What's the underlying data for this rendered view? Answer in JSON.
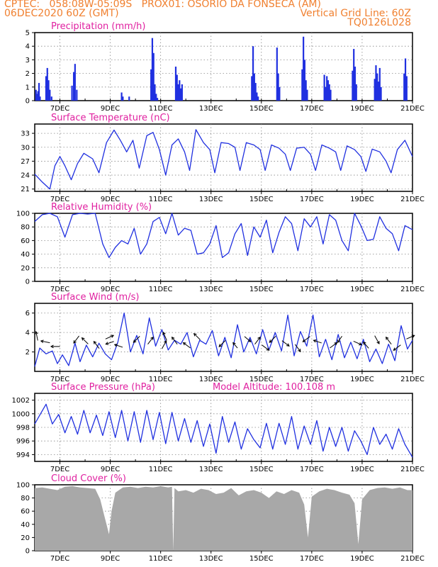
{
  "header": {
    "line1": "CPTEC:   058:08W-05:09S   PROX01: OSORIO DA FONSECA (AM)",
    "line2": "06DEC2020 60Z (GMT)",
    "grid_note": "Vertical Grid Line: 60Z",
    "code": "TQ0126L028"
  },
  "colors": {
    "header": "#f08030",
    "title": "#e020a0",
    "series": "#2030e0",
    "cloud": "#a8a8a8",
    "grid": "#888888"
  },
  "chart_data": [
    {
      "type": "bar",
      "title": "Precipitation (mm/h)",
      "x_ticks": [
        "7DEC",
        "9DEC",
        "11DEC",
        "13DEC",
        "15DEC",
        "17DEC",
        "19DEC",
        "21DEC"
      ],
      "ylim": [
        0,
        5
      ],
      "y_ticks": [
        0,
        1,
        2,
        3,
        4,
        5
      ],
      "grid": true,
      "x": [
        6.05,
        6.09,
        6.13,
        6.17,
        6.21,
        6.45,
        6.5,
        6.55,
        6.6,
        6.67,
        7.48,
        7.55,
        7.6,
        7.67,
        9.45,
        9.5,
        9.75,
        10.62,
        10.67,
        10.72,
        10.77,
        10.82,
        10.87,
        11.6,
        11.65,
        11.7,
        11.75,
        11.8,
        11.85,
        14.62,
        14.67,
        14.72,
        14.77,
        14.82,
        14.87,
        15.62,
        15.67,
        15.72,
        16.62,
        16.67,
        16.72,
        16.77,
        16.82,
        17.5,
        17.55,
        17.6,
        17.65,
        17.7,
        17.75,
        18.62,
        18.67,
        18.72,
        18.77,
        19.5,
        19.55,
        19.6,
        19.65,
        19.7,
        19.75,
        20.67,
        20.72,
        20.77
      ],
      "values": [
        0.8,
        0.5,
        0.7,
        1.3,
        0.3,
        1.8,
        2.4,
        1.5,
        0.8,
        0.3,
        1.1,
        2.1,
        2.7,
        0.8,
        0.6,
        0.3,
        0.3,
        2.3,
        4.6,
        3.5,
        1.2,
        0.5,
        0.2,
        2.5,
        1.9,
        1.2,
        1.5,
        0.9,
        1.2,
        1.8,
        4.0,
        2.0,
        1.3,
        0.6,
        0.3,
        3.9,
        2.0,
        1.0,
        2.3,
        4.7,
        3.0,
        1.5,
        0.8,
        1.9,
        1.0,
        1.8,
        1.5,
        1.2,
        0.8,
        2.2,
        3.8,
        2.5,
        1.2,
        1.6,
        2.6,
        2.0,
        1.4,
        2.4,
        1.0,
        2.0,
        3.1,
        1.8
      ]
    },
    {
      "type": "line",
      "title": "Surface Temperature (nC)",
      "x_ticks": [
        "7DEC",
        "9DEC",
        "11DEC",
        "13DEC",
        "15DEC",
        "17DEC",
        "19DEC",
        "21DEC"
      ],
      "ylim": [
        20.5,
        35
      ],
      "y_ticks": [
        21,
        24,
        27,
        30,
        33
      ],
      "grid": true,
      "x": [
        6.0,
        6.3,
        6.6,
        6.8,
        7.0,
        7.2,
        7.45,
        7.7,
        7.95,
        8.3,
        8.55,
        8.85,
        9.15,
        9.4,
        9.65,
        9.9,
        10.15,
        10.45,
        10.7,
        10.95,
        11.2,
        11.45,
        11.7,
        11.95,
        12.15,
        12.4,
        12.7,
        12.95,
        13.15,
        13.4,
        13.7,
        13.95,
        14.15,
        14.4,
        14.7,
        14.95,
        15.15,
        15.4,
        15.7,
        15.95,
        16.15,
        16.4,
        16.7,
        16.95,
        17.15,
        17.4,
        17.7,
        17.95,
        18.15,
        18.4,
        18.7,
        18.95,
        19.15,
        19.4,
        19.7,
        19.95,
        20.15,
        20.4,
        20.7,
        21.0
      ],
      "values": [
        24.2,
        22.5,
        21.0,
        26.0,
        28.0,
        26.0,
        23.0,
        26.5,
        28.7,
        27.5,
        24.5,
        31.0,
        33.7,
        31.5,
        29.0,
        31.5,
        25.5,
        32.5,
        33.2,
        29.5,
        24.0,
        30.5,
        31.8,
        29.0,
        25.0,
        33.8,
        31.0,
        29.5,
        24.5,
        31.0,
        30.8,
        30.0,
        25.0,
        31.0,
        30.5,
        29.5,
        25.0,
        30.5,
        29.8,
        28.5,
        25.0,
        29.8,
        30.0,
        28.5,
        25.0,
        30.5,
        29.8,
        29.0,
        25.0,
        30.3,
        29.5,
        28.0,
        24.8,
        29.6,
        29.0,
        27.0,
        24.5,
        29.5,
        31.5,
        28.0
      ]
    },
    {
      "type": "line",
      "title": "Relative Humidity (%)",
      "x_ticks": [
        "7DEC",
        "9DEC",
        "11DEC",
        "13DEC",
        "15DEC",
        "17DEC",
        "19DEC",
        "21DEC"
      ],
      "ylim": [
        0,
        100
      ],
      "y_ticks": [
        0,
        20,
        40,
        60,
        80,
        100
      ],
      "grid": true,
      "x": [
        6.0,
        6.3,
        6.6,
        6.9,
        7.2,
        7.5,
        7.8,
        8.1,
        8.4,
        8.7,
        8.95,
        9.2,
        9.45,
        9.7,
        9.95,
        10.2,
        10.45,
        10.7,
        10.95,
        11.2,
        11.45,
        11.7,
        11.95,
        12.2,
        12.45,
        12.7,
        12.95,
        13.2,
        13.45,
        13.7,
        13.95,
        14.2,
        14.45,
        14.7,
        14.95,
        15.2,
        15.45,
        15.7,
        15.95,
        16.2,
        16.45,
        16.7,
        16.95,
        17.2,
        17.45,
        17.7,
        17.95,
        18.2,
        18.45,
        18.7,
        18.95,
        19.2,
        19.45,
        19.7,
        19.95,
        20.2,
        20.45,
        20.7,
        21.0
      ],
      "values": [
        88,
        98,
        100,
        95,
        65,
        98,
        100,
        99,
        100,
        55,
        35,
        50,
        60,
        55,
        78,
        40,
        55,
        88,
        94,
        70,
        100,
        68,
        78,
        75,
        40,
        42,
        55,
        82,
        35,
        42,
        70,
        85,
        38,
        80,
        65,
        90,
        42,
        72,
        95,
        85,
        45,
        92,
        80,
        95,
        55,
        98,
        90,
        60,
        45,
        100,
        82,
        60,
        62,
        95,
        78,
        70,
        45,
        82,
        76
      ]
    },
    {
      "type": "line",
      "title": "Surface Wind (m/s)",
      "x_ticks": [
        "7DEC",
        "9DEC",
        "11DEC",
        "13DEC",
        "15DEC",
        "17DEC",
        "19DEC",
        "21DEC"
      ],
      "ylim": [
        0,
        7
      ],
      "y_ticks": [
        2,
        4,
        6
      ],
      "grid": true,
      "x": [
        6.0,
        6.2,
        6.45,
        6.7,
        6.9,
        7.1,
        7.35,
        7.6,
        7.8,
        8.05,
        8.3,
        8.55,
        8.8,
        9.05,
        9.3,
        9.55,
        9.8,
        10.05,
        10.3,
        10.55,
        10.8,
        11.05,
        11.3,
        11.55,
        11.8,
        12.05,
        12.3,
        12.55,
        12.8,
        13.05,
        13.3,
        13.55,
        13.8,
        14.05,
        14.3,
        14.55,
        14.8,
        15.05,
        15.3,
        15.55,
        15.8,
        16.05,
        16.3,
        16.55,
        16.8,
        17.05,
        17.3,
        17.55,
        17.8,
        18.05,
        18.3,
        18.55,
        18.8,
        19.05,
        19.3,
        19.55,
        19.8,
        20.05,
        20.3,
        20.55,
        20.8,
        21.0
      ],
      "values": [
        0.5,
        2.4,
        1.8,
        2.1,
        0.8,
        1.7,
        0.6,
        2.9,
        1.0,
        2.7,
        1.5,
        2.9,
        1.8,
        1.2,
        3.0,
        6.0,
        2.0,
        3.7,
        1.8,
        5.5,
        2.6,
        4.3,
        2.2,
        3.2,
        2.8,
        4.0,
        1.5,
        3.2,
        2.8,
        4.2,
        1.6,
        3.5,
        1.4,
        4.8,
        2.0,
        3.5,
        1.8,
        4.3,
        2.2,
        4.0,
        2.1,
        5.8,
        1.6,
        4.1,
        2.6,
        5.8,
        1.5,
        3.3,
        1.2,
        3.8,
        1.4,
        3.0,
        1.3,
        3.3,
        1.0,
        2.3,
        0.8,
        2.8,
        1.1,
        4.7,
        2.3,
        3.2
      ],
      "arrows": [
        {
          "t": 6.1,
          "u": -0.2,
          "v": 1
        },
        {
          "t": 6.5,
          "u": -1,
          "v": 0.2
        },
        {
          "t": 6.9,
          "u": -1,
          "v": 0
        },
        {
          "t": 7.7,
          "u": -0.6,
          "v": -0.8
        },
        {
          "t": 8.05,
          "u": -0.7,
          "v": 0.7
        },
        {
          "t": 8.5,
          "u": -0.6,
          "v": 0.8
        },
        {
          "t": 8.9,
          "u": 0.9,
          "v": 0.4
        },
        {
          "t": 9.05,
          "u": -0.9,
          "v": -0.3
        },
        {
          "t": 9.4,
          "u": -0.9,
          "v": 0.3
        },
        {
          "t": 10.1,
          "u": -0.7,
          "v": -0.7
        },
        {
          "t": 10.55,
          "u": 0.6,
          "v": 0.8
        },
        {
          "t": 11.1,
          "u": 0.5,
          "v": 0.9
        },
        {
          "t": 11.2,
          "u": -0.4,
          "v": 0.9
        },
        {
          "t": 11.6,
          "u": -0.6,
          "v": 0.8
        },
        {
          "t": 12.1,
          "u": -0.8,
          "v": 0.6
        },
        {
          "t": 12.5,
          "u": -0.7,
          "v": 0.7
        },
        {
          "t": 13.5,
          "u": -0.7,
          "v": -0.7
        },
        {
          "t": 14.0,
          "u": -0.5,
          "v": 0.6
        },
        {
          "t": 14.4,
          "u": 0.7,
          "v": -0.6
        },
        {
          "t": 14.8,
          "u": 0.6,
          "v": 0.8
        },
        {
          "t": 15.1,
          "u": 0.8,
          "v": -0.6
        },
        {
          "t": 15.5,
          "u": -0.7,
          "v": -0.7
        },
        {
          "t": 15.9,
          "u": 0.8,
          "v": -0.6
        },
        {
          "t": 16.4,
          "u": 0.6,
          "v": -0.8
        },
        {
          "t": 16.85,
          "u": -0.8,
          "v": -0.6
        },
        {
          "t": 17.3,
          "u": -0.9,
          "v": 0.3
        },
        {
          "t": 17.8,
          "u": 0.8,
          "v": 0.6
        },
        {
          "t": 18.15,
          "u": -0.5,
          "v": -0.7
        },
        {
          "t": 18.75,
          "u": 0.9,
          "v": -0.4
        },
        {
          "t": 19.2,
          "u": -0.6,
          "v": 0.7
        },
        {
          "t": 19.55,
          "u": 0.5,
          "v": -0.9
        },
        {
          "t": 20.1,
          "u": -0.6,
          "v": 0.8
        },
        {
          "t": 20.45,
          "u": -0.8,
          "v": -0.6
        },
        {
          "t": 20.85,
          "u": 0.9,
          "v": 0.4
        }
      ]
    },
    {
      "type": "line",
      "title": "Surface Pressure (hPa)",
      "annotation": "Model Altitude: 100.108 m",
      "x_ticks": [
        "7DEC",
        "9DEC",
        "11DEC",
        "13DEC",
        "15DEC",
        "17DEC",
        "19DEC",
        "21DEC"
      ],
      "ylim": [
        993,
        1003
      ],
      "y_ticks": [
        994,
        996,
        998,
        1000,
        1002
      ],
      "grid": true,
      "x": [
        6.0,
        6.2,
        6.45,
        6.7,
        6.95,
        7.2,
        7.45,
        7.7,
        7.95,
        8.2,
        8.45,
        8.7,
        8.95,
        9.2,
        9.45,
        9.7,
        9.95,
        10.2,
        10.45,
        10.7,
        10.95,
        11.2,
        11.45,
        11.7,
        11.95,
        12.2,
        12.45,
        12.7,
        12.95,
        13.2,
        13.45,
        13.7,
        13.95,
        14.2,
        14.45,
        14.7,
        14.95,
        15.2,
        15.45,
        15.7,
        15.95,
        16.2,
        16.45,
        16.7,
        16.95,
        17.2,
        17.45,
        17.7,
        17.95,
        18.2,
        18.45,
        18.7,
        18.95,
        19.2,
        19.45,
        19.7,
        19.95,
        20.2,
        20.45,
        20.7,
        21.0
      ],
      "values": [
        998.5,
        999.8,
        1001.4,
        998.5,
        999.9,
        997.2,
        999.6,
        997.0,
        1000.5,
        997.2,
        999.8,
        996.8,
        1000.3,
        996.5,
        1000.5,
        996.0,
        1000.3,
        995.8,
        1000.5,
        996.2,
        1000.2,
        995.6,
        1000.2,
        996.0,
        999.3,
        995.8,
        999.0,
        995.2,
        998.5,
        994.2,
        999.6,
        995.8,
        998.8,
        994.8,
        997.8,
        996.2,
        995.0,
        998.6,
        994.8,
        998.6,
        995.5,
        999.6,
        994.8,
        998.2,
        995.5,
        999.0,
        994.5,
        998.0,
        995.2,
        998.0,
        994.5,
        997.5,
        996.0,
        994.0,
        998.0,
        995.5,
        997.0,
        994.8,
        997.8,
        995.5,
        993.6
      ]
    },
    {
      "type": "area",
      "title": "Cloud Cover (%)",
      "x_ticks": [
        "7DEC",
        "9DEC",
        "11DEC",
        "13DEC",
        "15DEC",
        "17DEC",
        "19DEC",
        "21DEC"
      ],
      "ylim": [
        0,
        100
      ],
      "y_ticks": [
        0,
        20,
        40,
        60,
        80,
        100
      ],
      "grid": true,
      "x": [
        6.0,
        6.3,
        6.6,
        6.9,
        7.2,
        7.5,
        7.8,
        8.1,
        8.4,
        8.6,
        8.75,
        8.85,
        8.95,
        9.05,
        9.2,
        9.5,
        9.8,
        10.1,
        10.4,
        10.7,
        11.0,
        11.3,
        11.45,
        11.5,
        11.55,
        11.7,
        12.0,
        12.3,
        12.6,
        12.9,
        13.2,
        13.5,
        13.8,
        14.1,
        14.4,
        14.7,
        15.0,
        15.3,
        15.6,
        15.9,
        16.2,
        16.5,
        16.7,
        16.85,
        17.0,
        17.3,
        17.6,
        17.9,
        18.2,
        18.5,
        18.7,
        18.85,
        19.0,
        19.3,
        19.6,
        19.9,
        20.2,
        20.5,
        20.8,
        21.0
      ],
      "values": [
        95,
        96,
        94,
        92,
        97,
        98,
        96,
        95,
        94,
        78,
        55,
        40,
        25,
        60,
        88,
        96,
        97,
        95,
        97,
        96,
        98,
        96,
        97,
        0,
        95,
        90,
        92,
        88,
        94,
        92,
        86,
        88,
        95,
        84,
        90,
        92,
        88,
        80,
        90,
        86,
        92,
        88,
        70,
        20,
        82,
        90,
        94,
        92,
        88,
        85,
        72,
        10,
        78,
        92,
        95,
        96,
        94,
        96,
        92,
        92
      ]
    }
  ]
}
